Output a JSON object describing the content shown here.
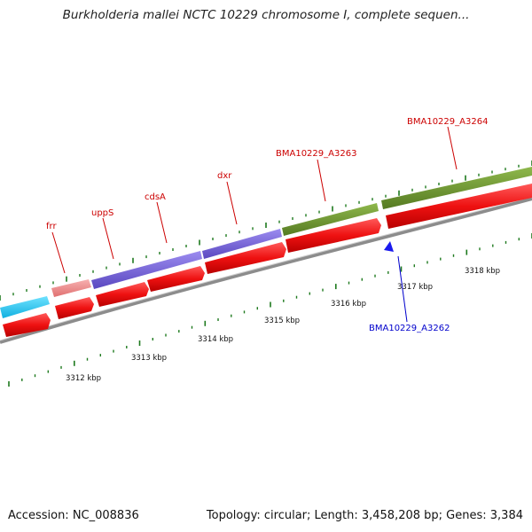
{
  "title": "Burkholderia mallei NCTC 10229 chromosome I, complete sequen...",
  "colors": {
    "cds": "#ee1111",
    "trna_like": "#f08a8a",
    "cyan": "#22ccf5",
    "purple": "#7b68d6",
    "olive": "#6e9632",
    "backbone": "#8c8c8c",
    "tick": "#1e7a1e",
    "label_red": "#cc0000",
    "label_blue": "#0000cc",
    "marker_blue": "#1a1aee"
  },
  "gene_labels": {
    "frr": "frr",
    "uppS": "uppS",
    "cdsA": "cdsA",
    "dxr": "dxr",
    "bma3263": "BMA10229_A3263",
    "bma3264": "BMA10229_A3264",
    "bma3262": "BMA10229_A3262"
  },
  "scale_labels": {
    "k3312": "3312 kbp",
    "k3313": "3313 kbp",
    "k3314": "3314 kbp",
    "k3315": "3315 kbp",
    "k3316": "3316 kbp",
    "k3317": "3317 kbp",
    "k3318": "3318 kbp"
  },
  "footer": {
    "accession": "Accession: NC_008836",
    "summary": "Topology: circular; Length: 3,458,208 bp; Genes: 3,384"
  }
}
